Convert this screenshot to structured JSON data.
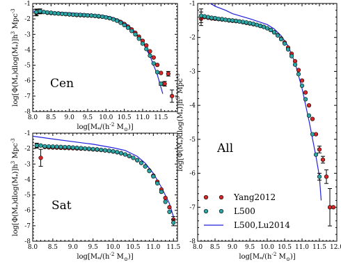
{
  "chart_data": [
    {
      "type": "scatter",
      "panel_label": "Cen",
      "xlabel": "log[M_*/(h^-2 M_⊙)]",
      "ylabel": "log[Φ(M_*)dlog(M_*)]h^3 Mpc^-3",
      "xlim": [
        8.0,
        12.0
      ],
      "ylim": [
        -8,
        -1
      ],
      "xticks": [
        "8.0",
        "8.5",
        "9.0",
        "9.5",
        "10.0",
        "10.5",
        "11.0",
        "11.5"
      ],
      "yticks": [
        "-1",
        "-2",
        "-3",
        "-4",
        "-5",
        "-6",
        "-7",
        "-8"
      ],
      "series": [
        {
          "name": "Yang2012",
          "color": "#d62728",
          "x": [
            8.1,
            8.2,
            8.3,
            8.4,
            8.5,
            8.6,
            8.7,
            8.8,
            8.9,
            9.0,
            9.1,
            9.2,
            9.3,
            9.4,
            9.5,
            9.6,
            9.7,
            9.8,
            9.9,
            10.0,
            10.1,
            10.2,
            10.3,
            10.4,
            10.5,
            10.6,
            10.7,
            10.8,
            10.9,
            11.0,
            11.1,
            11.2,
            11.3,
            11.4,
            11.5,
            11.6,
            11.7,
            11.8
          ],
          "y": [
            -1.6,
            -1.52,
            -1.55,
            -1.6,
            -1.62,
            -1.64,
            -1.65,
            -1.67,
            -1.69,
            -1.71,
            -1.73,
            -1.75,
            -1.76,
            -1.77,
            -1.78,
            -1.79,
            -1.81,
            -1.84,
            -1.86,
            -1.9,
            -1.95,
            -2.02,
            -2.1,
            -2.2,
            -2.33,
            -2.5,
            -2.68,
            -2.9,
            -3.15,
            -3.42,
            -3.72,
            -4.1,
            -4.5,
            -4.98,
            -5.5,
            -6.2,
            -5.55,
            -7.0
          ],
          "yerr": [
            0.2,
            0.15,
            0.05,
            0,
            0,
            0,
            0,
            0,
            0,
            0,
            0,
            0,
            0,
            0,
            0,
            0,
            0,
            0,
            0,
            0,
            0,
            0,
            0,
            0,
            0,
            0,
            0,
            0,
            0,
            0,
            0,
            0,
            0,
            0,
            0,
            0.15,
            0.15,
            0.4
          ]
        },
        {
          "name": "L500",
          "color": "#2aa6a6",
          "x": [
            8.1,
            8.2,
            8.3,
            8.4,
            8.5,
            8.6,
            8.7,
            8.8,
            8.9,
            9.0,
            9.1,
            9.2,
            9.3,
            9.4,
            9.5,
            9.6,
            9.7,
            9.8,
            9.9,
            10.0,
            10.1,
            10.2,
            10.3,
            10.4,
            10.5,
            10.6,
            10.7,
            10.8,
            10.9,
            11.0,
            11.1,
            11.2,
            11.3,
            11.4,
            11.5
          ],
          "y": [
            -1.56,
            -1.5,
            -1.55,
            -1.58,
            -1.6,
            -1.63,
            -1.65,
            -1.67,
            -1.68,
            -1.7,
            -1.72,
            -1.73,
            -1.74,
            -1.75,
            -1.77,
            -1.78,
            -1.8,
            -1.82,
            -1.85,
            -1.9,
            -1.95,
            -2.03,
            -2.12,
            -2.25,
            -2.4,
            -2.57,
            -2.78,
            -3.0,
            -3.28,
            -3.6,
            -3.95,
            -4.38,
            -4.88,
            -5.45,
            -6.2
          ],
          "yerr": [
            0.2,
            0.15,
            0,
            0,
            0,
            0,
            0,
            0,
            0,
            0,
            0,
            0,
            0,
            0,
            0,
            0,
            0,
            0,
            0,
            0,
            0,
            0,
            0,
            0,
            0,
            0,
            0,
            0,
            0,
            0,
            0,
            0,
            0,
            0,
            0.1
          ]
        },
        {
          "name": "L500,Lu2014",
          "color": "#1f1fdf",
          "x": [
            8.0,
            8.5,
            9.0,
            9.5,
            10.0,
            10.2,
            10.4,
            10.6,
            10.8,
            11.0,
            11.2,
            11.4,
            11.55
          ],
          "y": [
            -1.5,
            -1.55,
            -1.6,
            -1.68,
            -1.8,
            -1.92,
            -2.1,
            -2.4,
            -2.85,
            -3.5,
            -4.4,
            -5.6,
            -6.85
          ]
        }
      ]
    },
    {
      "type": "scatter",
      "panel_label": "Sat",
      "xlabel": "log[M_*/(h^-2 M_⊙)]",
      "ylabel": "log[Φ(M_*)dlog(M_*)]h^3 Mpc^-3",
      "xlim": [
        8.0,
        12.0
      ],
      "ylim": [
        -8,
        -1
      ],
      "xticks": [
        "8.0",
        "8.5",
        "9.0",
        "9.5",
        "10.0",
        "10.5",
        "11.0",
        "11.5"
      ],
      "yticks": [
        "-1",
        "-2",
        "-3",
        "-4",
        "-5",
        "-6",
        "-7",
        "-8"
      ],
      "series": [
        {
          "name": "Yang2012",
          "color": "#d62728",
          "x": [
            8.1,
            8.2,
            8.3,
            8.4,
            8.5,
            8.6,
            8.7,
            8.8,
            8.9,
            9.0,
            9.1,
            9.2,
            9.3,
            9.4,
            9.5,
            9.6,
            9.7,
            9.8,
            9.9,
            10.0,
            10.1,
            10.2,
            10.3,
            10.4,
            10.5,
            10.6,
            10.7,
            10.8,
            10.9,
            11.0,
            11.1,
            11.2,
            11.3,
            11.4,
            11.5
          ],
          "y": [
            -1.82,
            -2.6,
            -1.9,
            -1.92,
            -1.93,
            -1.94,
            -1.95,
            -1.96,
            -1.97,
            -1.98,
            -1.99,
            -2.0,
            -2.01,
            -2.03,
            -2.05,
            -2.07,
            -2.09,
            -2.12,
            -2.15,
            -2.19,
            -2.24,
            -2.3,
            -2.38,
            -2.48,
            -2.6,
            -2.75,
            -2.93,
            -3.15,
            -3.42,
            -3.75,
            -4.15,
            -4.65,
            -5.2,
            -5.8,
            -6.6
          ],
          "yerr": [
            0.15,
            0.55,
            0,
            0,
            0,
            0,
            0,
            0,
            0,
            0,
            0,
            0,
            0,
            0,
            0,
            0,
            0,
            0,
            0,
            0,
            0,
            0,
            0,
            0,
            0,
            0,
            0,
            0,
            0,
            0,
            0,
            0,
            0,
            0,
            0.2
          ]
        },
        {
          "name": "L500",
          "color": "#2aa6a6",
          "x": [
            8.1,
            8.2,
            8.3,
            8.4,
            8.5,
            8.6,
            8.7,
            8.8,
            8.9,
            9.0,
            9.1,
            9.2,
            9.3,
            9.4,
            9.5,
            9.6,
            9.7,
            9.8,
            9.9,
            10.0,
            10.1,
            10.2,
            10.3,
            10.4,
            10.5,
            10.6,
            10.7,
            10.8,
            10.9,
            11.0,
            11.1,
            11.2,
            11.3,
            11.4,
            11.5
          ],
          "y": [
            -1.8,
            -1.8,
            -1.85,
            -1.86,
            -1.87,
            -1.88,
            -1.89,
            -1.9,
            -1.91,
            -1.93,
            -1.95,
            -1.97,
            -1.99,
            -2.01,
            -2.03,
            -2.05,
            -2.08,
            -2.11,
            -2.14,
            -2.18,
            -2.23,
            -2.3,
            -2.38,
            -2.48,
            -2.6,
            -2.75,
            -2.93,
            -3.16,
            -3.45,
            -3.8,
            -4.25,
            -4.8,
            -5.45,
            -6.1,
            -6.8
          ],
          "yerr": [
            0.15,
            0,
            0,
            0,
            0,
            0,
            0,
            0,
            0,
            0,
            0,
            0,
            0,
            0,
            0,
            0,
            0,
            0,
            0,
            0,
            0,
            0,
            0,
            0,
            0,
            0,
            0,
            0,
            0,
            0,
            0,
            0,
            0,
            0,
            0.2
          ]
        },
        {
          "name": "L500,Lu2014",
          "color": "#1f1fdf",
          "x": [
            8.0,
            8.5,
            9.0,
            9.5,
            10.0,
            10.3,
            10.6,
            10.8,
            11.0,
            11.2,
            11.4,
            11.5
          ],
          "y": [
            -1.2,
            -1.38,
            -1.55,
            -1.72,
            -1.95,
            -2.12,
            -2.5,
            -2.95,
            -3.6,
            -4.5,
            -5.55,
            -6.4
          ]
        }
      ]
    },
    {
      "type": "scatter",
      "panel_label": "All",
      "xlabel": "log[M_*/(h^-2 M_⊙)]",
      "ylabel": "log[Φ(M_*)dlog(M_*)]h^3 Mpc^-3",
      "xlim": [
        8.0,
        12.0
      ],
      "ylim": [
        -8,
        -1
      ],
      "xticks": [
        "8.0",
        "8.5",
        "9.0",
        "9.5",
        "10.0",
        "10.5",
        "11.0",
        "11.5",
        "12.0"
      ],
      "yticks": [
        "-1",
        "-2",
        "-3",
        "-4",
        "-5",
        "-6",
        "-7",
        "-8"
      ],
      "series": [
        {
          "name": "Yang2012",
          "color": "#d62728",
          "x": [
            8.1,
            8.2,
            8.3,
            8.4,
            8.5,
            8.6,
            8.7,
            8.8,
            8.9,
            9.0,
            9.1,
            9.2,
            9.3,
            9.4,
            9.5,
            9.6,
            9.7,
            9.8,
            9.9,
            10.0,
            10.1,
            10.2,
            10.3,
            10.4,
            10.5,
            10.6,
            10.7,
            10.8,
            10.9,
            11.0,
            11.1,
            11.2,
            11.3,
            11.4,
            11.5,
            11.6,
            11.7,
            11.8,
            11.9
          ],
          "y": [
            -1.45,
            -1.4,
            -1.42,
            -1.44,
            -1.45,
            -1.46,
            -1.47,
            -1.48,
            -1.5,
            -1.51,
            -1.52,
            -1.53,
            -1.55,
            -1.57,
            -1.59,
            -1.61,
            -1.63,
            -1.66,
            -1.69,
            -1.73,
            -1.78,
            -1.85,
            -1.93,
            -2.03,
            -2.15,
            -2.3,
            -2.48,
            -2.7,
            -2.96,
            -3.27,
            -3.62,
            -4.0,
            -4.4,
            -4.85,
            -5.3,
            -5.6,
            -6.1,
            -7.0,
            -7.0
          ],
          "yerr": [
            0.2,
            0,
            0,
            0,
            0,
            0,
            0,
            0,
            0,
            0,
            0,
            0,
            0,
            0,
            0,
            0,
            0,
            0,
            0,
            0,
            0,
            0,
            0,
            0,
            0,
            0,
            0,
            0,
            0,
            0,
            0,
            0,
            0,
            0,
            0.1,
            0.1,
            0.2,
            0.55,
            0
          ]
        },
        {
          "name": "L500",
          "color": "#2aa6a6",
          "x": [
            8.1,
            8.2,
            8.3,
            8.4,
            8.5,
            8.6,
            8.7,
            8.8,
            8.9,
            9.0,
            9.1,
            9.2,
            9.3,
            9.4,
            9.5,
            9.6,
            9.7,
            9.8,
            9.9,
            10.0,
            10.1,
            10.2,
            10.3,
            10.4,
            10.5,
            10.6,
            10.7,
            10.8,
            10.9,
            11.0,
            11.1,
            11.2,
            11.3,
            11.4,
            11.5
          ],
          "y": [
            -1.36,
            -1.38,
            -1.4,
            -1.42,
            -1.43,
            -1.45,
            -1.46,
            -1.48,
            -1.49,
            -1.5,
            -1.51,
            -1.53,
            -1.54,
            -1.56,
            -1.58,
            -1.6,
            -1.63,
            -1.66,
            -1.69,
            -1.73,
            -1.78,
            -1.85,
            -1.94,
            -2.05,
            -2.18,
            -2.35,
            -2.55,
            -2.8,
            -3.08,
            -3.42,
            -3.82,
            -4.3,
            -4.85,
            -5.45,
            -6.1
          ],
          "yerr": [
            0.2,
            0,
            0,
            0,
            0,
            0,
            0,
            0,
            0,
            0,
            0,
            0,
            0,
            0,
            0,
            0,
            0,
            0,
            0,
            0,
            0,
            0,
            0,
            0,
            0,
            0,
            0,
            0,
            0,
            0,
            0,
            0,
            0,
            0,
            0.1
          ]
        },
        {
          "name": "L500,Lu2014",
          "color": "#1f1fdf",
          "x": [
            8.0,
            8.1,
            8.3,
            8.5,
            8.8,
            9.0,
            9.5,
            10.0,
            10.2,
            10.4,
            10.6,
            10.8,
            11.0,
            11.2,
            11.4,
            11.5,
            11.55
          ],
          "y": [
            -0.9,
            -0.88,
            -0.95,
            -1.08,
            -1.2,
            -1.3,
            -1.45,
            -1.62,
            -1.75,
            -1.95,
            -2.25,
            -2.75,
            -3.5,
            -4.45,
            -5.5,
            -6.1,
            -6.8
          ]
        }
      ],
      "legend": {
        "placement": "lower-left"
      }
    }
  ]
}
